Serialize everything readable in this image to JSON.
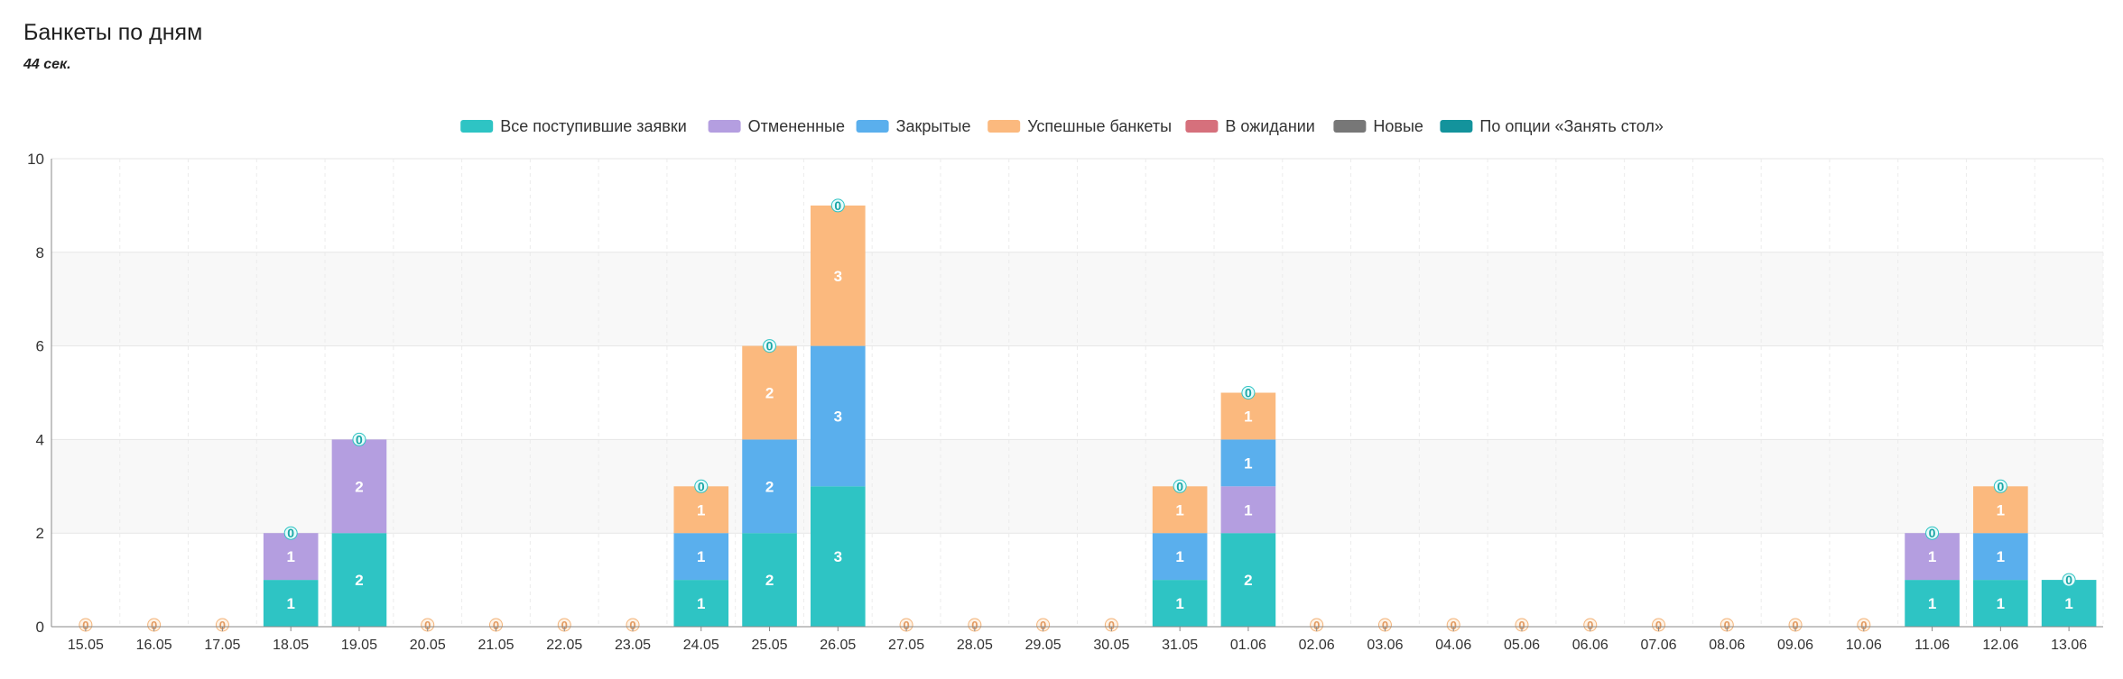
{
  "header": {
    "title": "Банкеты по дням",
    "subtitle": "44 сек."
  },
  "chart_data": {
    "type": "bar",
    "stacked": true,
    "categories": [
      "15.05",
      "16.05",
      "17.05",
      "18.05",
      "19.05",
      "20.05",
      "21.05",
      "22.05",
      "23.05",
      "24.05",
      "25.05",
      "26.05",
      "27.05",
      "28.05",
      "29.05",
      "30.05",
      "31.05",
      "01.06",
      "02.06",
      "03.06",
      "04.06",
      "05.06",
      "06.06",
      "07.06",
      "08.06",
      "09.06",
      "10.06",
      "11.06",
      "12.06",
      "13.06"
    ],
    "series": [
      {
        "name": "Все поступившие заявки",
        "color": "#2ec4c4",
        "values": [
          0,
          0,
          0,
          1,
          2,
          0,
          0,
          0,
          0,
          1,
          2,
          3,
          0,
          0,
          0,
          0,
          1,
          2,
          0,
          0,
          0,
          0,
          0,
          0,
          0,
          0,
          0,
          1,
          1,
          1
        ]
      },
      {
        "name": "Отмененные",
        "color": "#b49ee0",
        "values": [
          0,
          0,
          0,
          1,
          2,
          0,
          0,
          0,
          0,
          0,
          0,
          0,
          0,
          0,
          0,
          0,
          0,
          1,
          0,
          0,
          0,
          0,
          0,
          0,
          0,
          0,
          0,
          1,
          0,
          0
        ]
      },
      {
        "name": "Закрытые",
        "color": "#5aafed",
        "values": [
          0,
          0,
          0,
          0,
          0,
          0,
          0,
          0,
          0,
          1,
          2,
          3,
          0,
          0,
          0,
          0,
          1,
          1,
          0,
          0,
          0,
          0,
          0,
          0,
          0,
          0,
          0,
          0,
          1,
          0
        ]
      },
      {
        "name": "Успешные банкеты",
        "color": "#fbb97e",
        "values": [
          0,
          0,
          0,
          0,
          0,
          0,
          0,
          0,
          0,
          1,
          2,
          3,
          0,
          0,
          0,
          0,
          1,
          1,
          0,
          0,
          0,
          0,
          0,
          0,
          0,
          0,
          0,
          0,
          1,
          0
        ]
      },
      {
        "name": "В ожидании",
        "color": "#d6707c",
        "values": [
          0,
          0,
          0,
          0,
          0,
          0,
          0,
          0,
          0,
          0,
          0,
          0,
          0,
          0,
          0,
          0,
          0,
          0,
          0,
          0,
          0,
          0,
          0,
          0,
          0,
          0,
          0,
          0,
          0,
          0
        ]
      },
      {
        "name": "Новые",
        "color": "#777777",
        "values": [
          0,
          0,
          0,
          0,
          0,
          0,
          0,
          0,
          0,
          0,
          0,
          0,
          0,
          0,
          0,
          0,
          0,
          0,
          0,
          0,
          0,
          0,
          0,
          0,
          0,
          0,
          0,
          0,
          0,
          0
        ]
      },
      {
        "name": "По опции «Занять стол»",
        "color": "#13939c",
        "values": [
          0,
          0,
          0,
          0,
          0,
          0,
          0,
          0,
          0,
          0,
          0,
          0,
          0,
          0,
          0,
          0,
          0,
          0,
          0,
          0,
          0,
          0,
          0,
          0,
          0,
          0,
          0,
          0,
          0,
          0
        ]
      }
    ],
    "ylim": [
      0,
      10
    ],
    "yticks": [
      0,
      2,
      4,
      6,
      8,
      10
    ],
    "legend": "top-center",
    "grid": true
  }
}
